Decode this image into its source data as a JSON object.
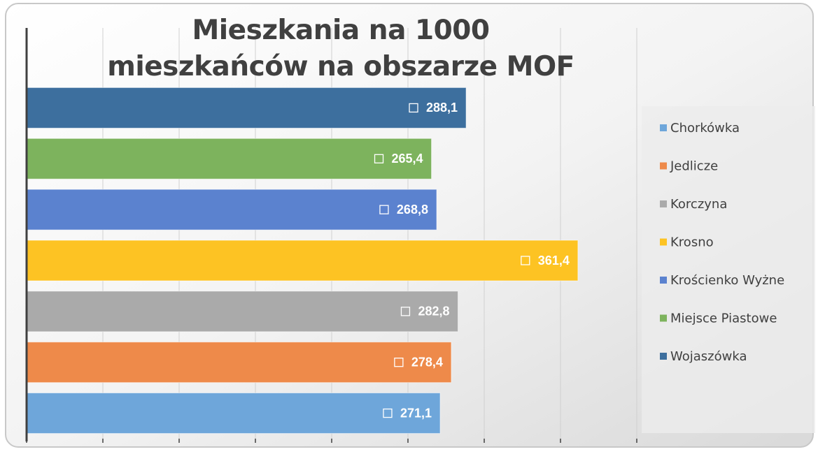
{
  "chart_data": {
    "type": "hbar",
    "title": "Mieszkania na 1000 mieszkańców na obszarze MOF",
    "categories": [
      "Chorkówka",
      "Jedlicze",
      "Korczyna",
      "Krosno",
      "Krościenko Wyżne",
      "Miejsce Piastowe",
      "Wojaszówka"
    ],
    "values": [
      271.1,
      278.4,
      282.8,
      361.4,
      268.8,
      265.4,
      288.1
    ],
    "value_labels": [
      "271,1",
      "278,4",
      "282,8",
      "361,4",
      "268,8",
      "265,4",
      "288,1"
    ],
    "colors": [
      "#6ea6da",
      "#ee8a4a",
      "#aaaaaa",
      "#fdc323",
      "#5b82cf",
      "#7db35d",
      "#3d6f9e"
    ],
    "xlim": [
      0,
      400
    ],
    "xticks": [
      0,
      50,
      100,
      150,
      200,
      250,
      300,
      350,
      400
    ],
    "grid": true,
    "legend": "right"
  }
}
